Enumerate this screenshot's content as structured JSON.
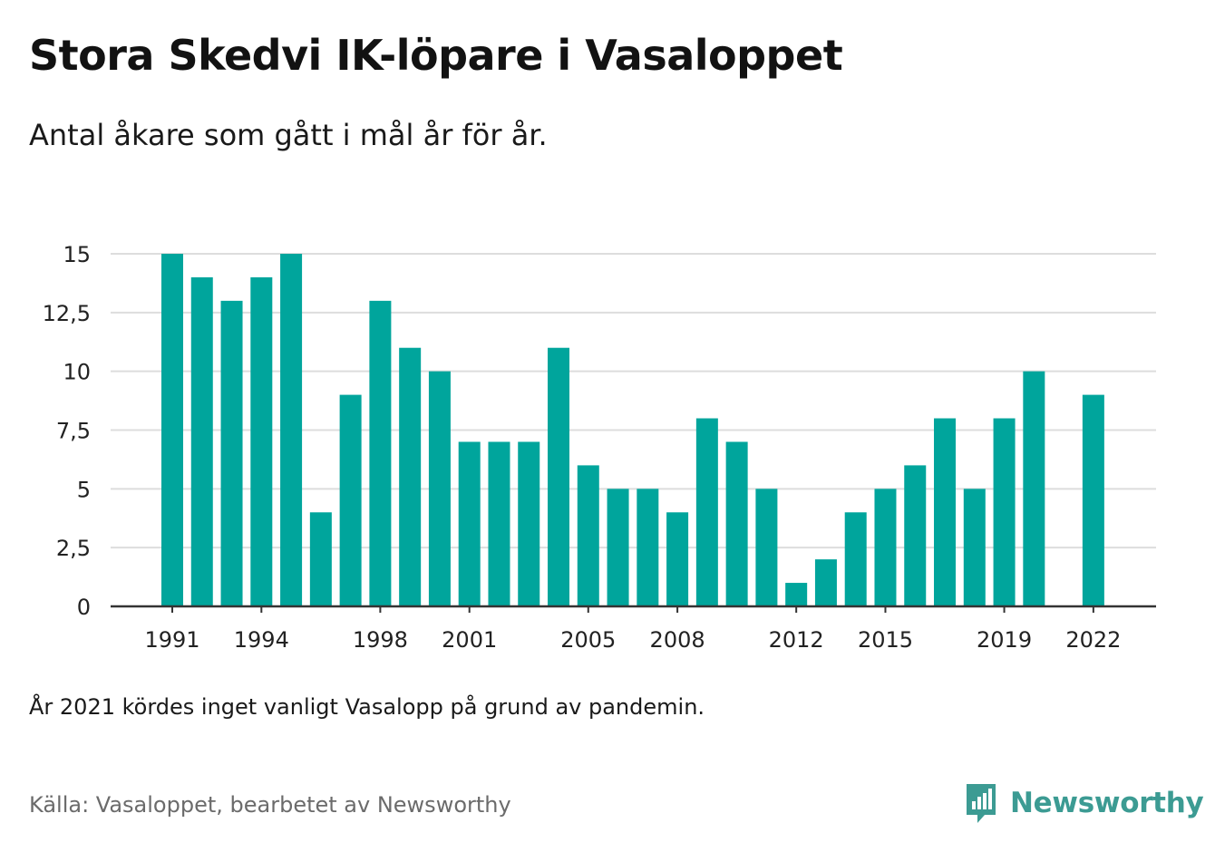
{
  "header": {
    "title": "Stora Skedvi IK-löpare i Vasaloppet",
    "subtitle": "Antal åkare som gått i mål år för år."
  },
  "chart_data": {
    "type": "bar",
    "categories": [
      "1991",
      "1992",
      "1993",
      "1994",
      "1995",
      "1996",
      "1997",
      "1998",
      "1999",
      "2000",
      "2001",
      "2002",
      "2003",
      "2004",
      "2005",
      "2006",
      "2007",
      "2008",
      "2009",
      "2010",
      "2011",
      "2012",
      "2013",
      "2014",
      "2015",
      "2016",
      "2017",
      "2018",
      "2019",
      "2020",
      "2021",
      "2022"
    ],
    "values": [
      15,
      14,
      13,
      14,
      15,
      4,
      9,
      13,
      11,
      10,
      7,
      7,
      7,
      11,
      6,
      5,
      5,
      4,
      8,
      7,
      5,
      1,
      2,
      4,
      5,
      6,
      8,
      5,
      8,
      10,
      null,
      9
    ],
    "x_tick_labels": [
      "1991",
      "1994",
      "1998",
      "2001",
      "2005",
      "2008",
      "2012",
      "2015",
      "2019",
      "2022"
    ],
    "y_ticks": [
      0,
      2.5,
      5,
      7.5,
      10,
      12.5,
      15
    ],
    "y_tick_labels": [
      "0",
      "2,5",
      "5",
      "7,5",
      "10",
      "12,5",
      "15"
    ],
    "ylim": [
      0,
      15
    ],
    "grid": true,
    "legend": "none",
    "bar_color": "#00a59c",
    "axis_color": "#333333",
    "grid_color": "#dddddd"
  },
  "footer": {
    "note": "År 2021 kördes inget vanligt Vasalopp på grund av pandemin.",
    "source": "Källa: Vasaloppet, bearbetet av Newsworthy",
    "brand": "Newsworthy",
    "brand_color": "#3c9b93",
    "logo_icon": "newsworthy-logo-icon"
  }
}
